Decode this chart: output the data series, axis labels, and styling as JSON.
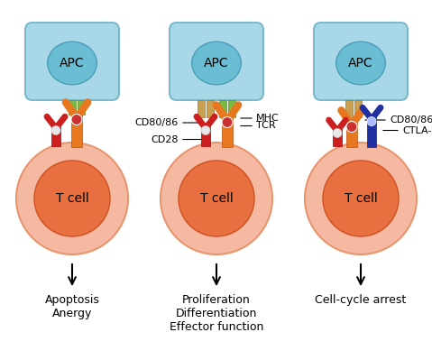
{
  "bg_color": "#ffffff",
  "apc_box_color": "#a8d8e8",
  "apc_box_edge": "#7ab8cc",
  "apc_oval_color": "#6bbdd4",
  "apc_oval_edge": "#4a9db8",
  "tcell_outer_color": "#f5b8a0",
  "tcell_outer_edge": "#e8956e",
  "tcell_inner_color": "#e87040",
  "tcell_inner_edge": "#d05020",
  "mhc_color": "#7ab842",
  "mhc_edge": "#5a9022",
  "cd80_color": "#c8a050",
  "cd80_edge": "#a07030",
  "tcr_stem_color": "#e87820",
  "tcr_arm_color": "#e87820",
  "tcr_edge": "#c05010",
  "cd28_color": "#cc2020",
  "cd28_edge": "#aa0000",
  "ctla4_color": "#2030a0",
  "ctla4_edge": "#102080",
  "joint_red": "#cc3030",
  "joint_white": "#e8e8e8",
  "panel_labels": [
    "Apoptosis\nAnergy",
    "Proliferation\nDifferentiation\nEffector function",
    "Cell-cycle arrest"
  ],
  "apc_label": "APC",
  "tcell_label": "T cell",
  "label_fontsize": 9,
  "apc_fontsize": 10,
  "tcell_fontsize": 10,
  "annot_fontsize": 8
}
